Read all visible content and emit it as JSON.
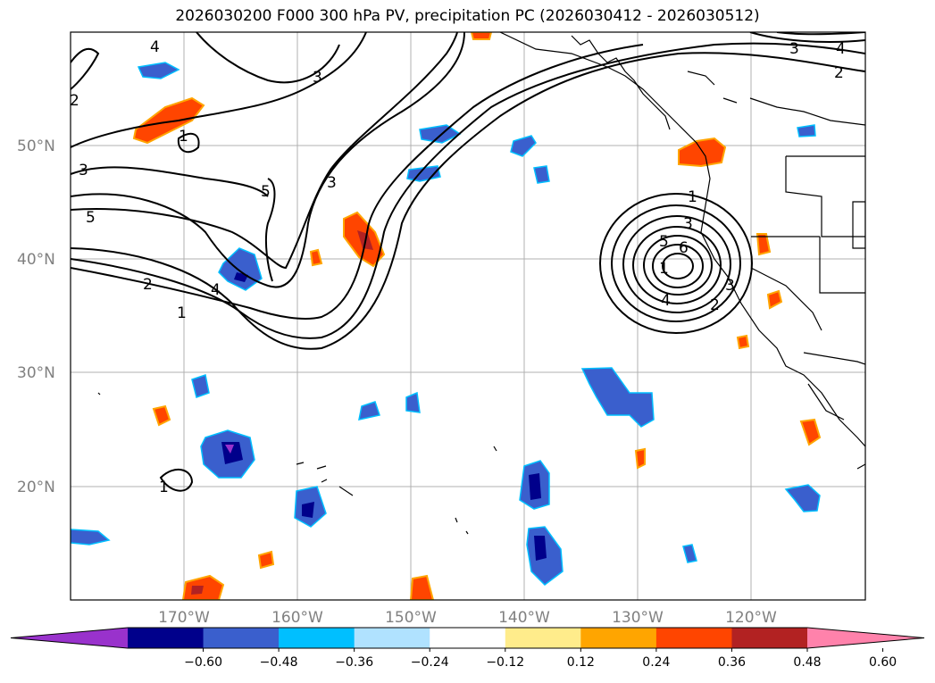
{
  "title": "2026030200 F000 300 hPa PV, precipitation PC (2026030412 - 2026030512)",
  "latitude_labels": [
    "50°N",
    "40°N",
    "30°N",
    "20°N"
  ],
  "longitude_labels": [
    "170°W",
    "160°W",
    "150°W",
    "140°W",
    "130°W",
    "120°W"
  ],
  "colorbar": {
    "ticks": [
      "−0.60",
      "−0.48",
      "−0.36",
      "−0.24",
      "−0.12",
      "0.12",
      "0.24",
      "0.36",
      "0.48",
      "0.60"
    ],
    "colors": [
      "#9932cc",
      "#00008b",
      "#3a5fcd",
      "#00bfff",
      "#b0e2ff",
      "#ffffff",
      "#ffec8b",
      "#ffa500",
      "#ff4500",
      "#b22222",
      "#ff82ab"
    ]
  },
  "pv_contour_labels": [
    "1",
    "2",
    "3",
    "4",
    "5",
    "3",
    "3",
    "5",
    "4",
    "2",
    "1",
    "1",
    "3",
    "5",
    "6",
    "1",
    "4",
    "2",
    "3",
    "2",
    "4",
    "1",
    "3"
  ],
  "colors": {
    "negative_dark": "#00008b",
    "negative_mid": "#3a5fcd",
    "negative_light": "#00bfff",
    "positive_light": "#ffec8b",
    "positive_mid": "#ffa500",
    "positive_strong": "#ff4500",
    "positive_dark": "#b22222"
  }
}
